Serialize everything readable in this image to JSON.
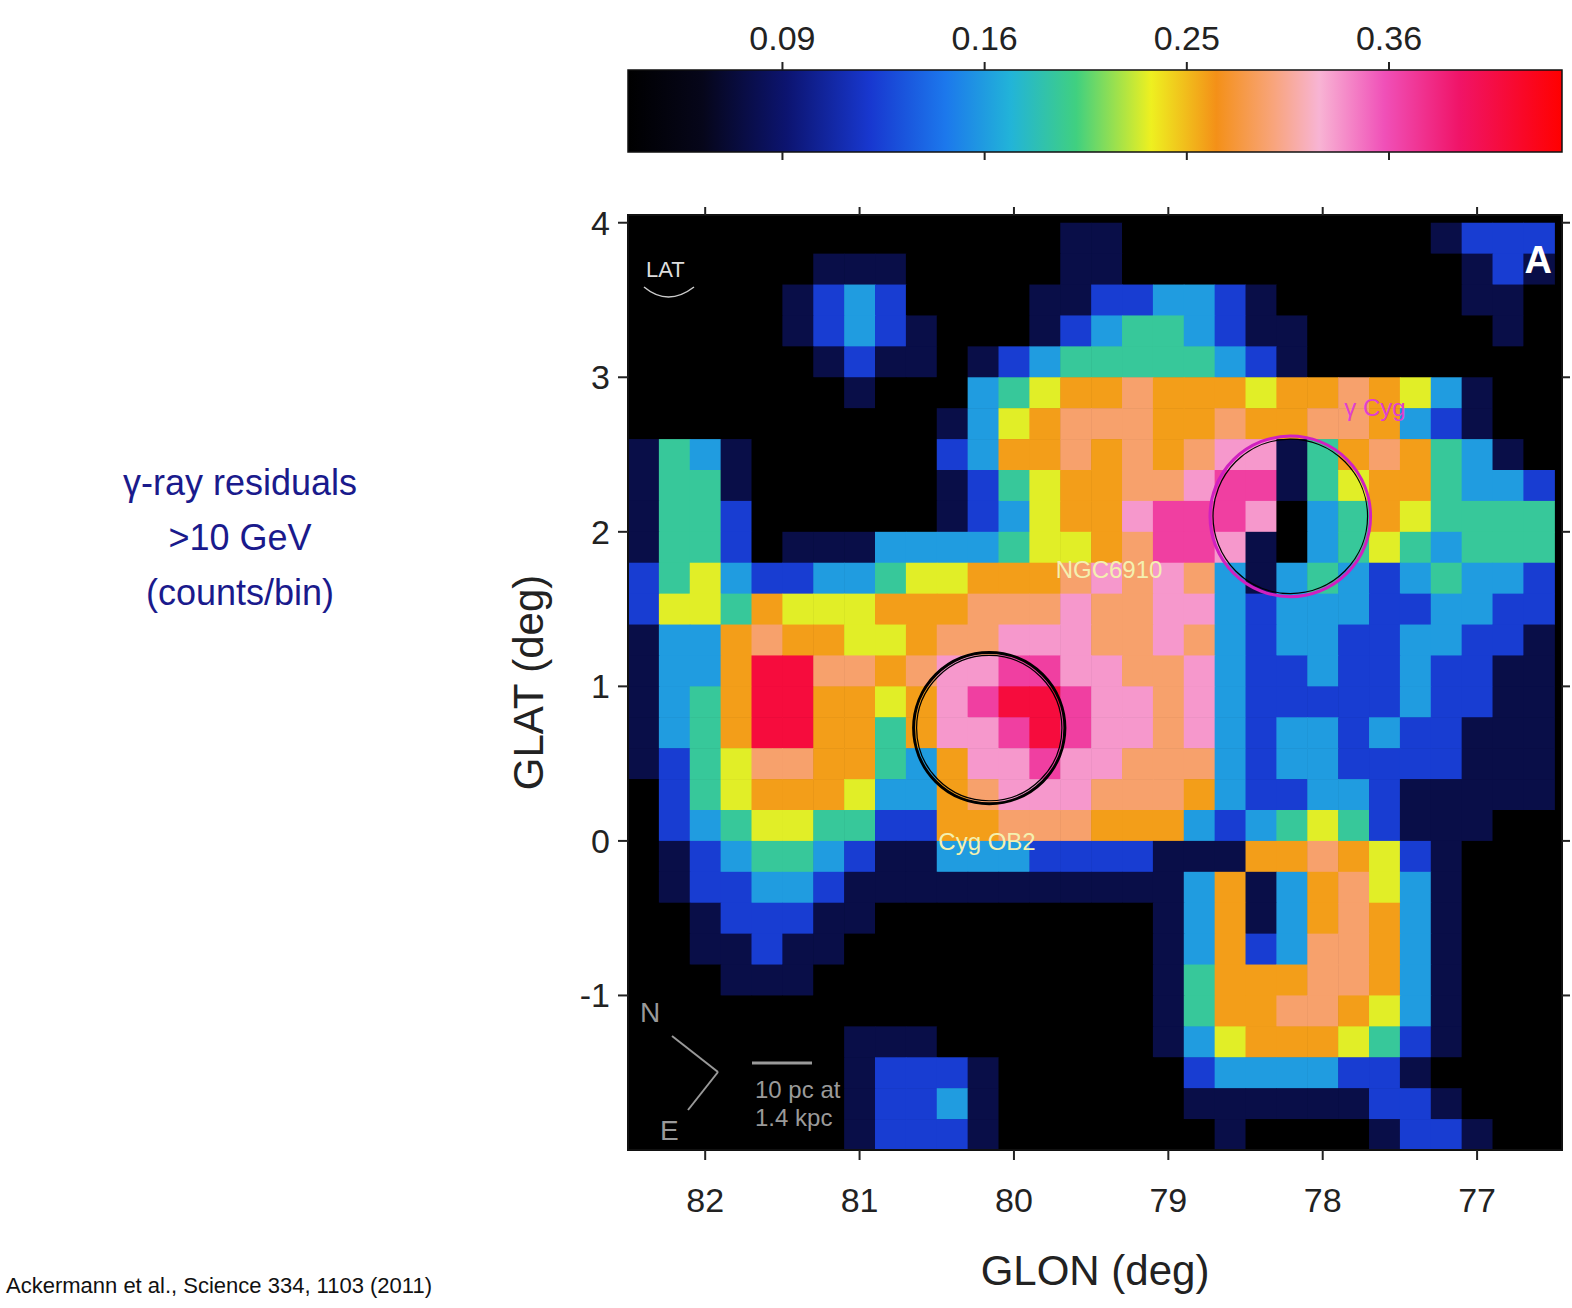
{
  "chart_data": {
    "type": "heatmap",
    "xlabel": "GLON (deg)",
    "ylabel": "GLAT (deg)",
    "xlim": [
      82.5,
      76.45
    ],
    "ylim": [
      -2.0,
      4.05
    ],
    "xticks": [
      82,
      81,
      80,
      79,
      78,
      77
    ],
    "yticks": [
      -1,
      0,
      1,
      2,
      3,
      4
    ],
    "x": [
      82.4,
      82.2,
      82.0,
      81.8,
      81.6,
      81.4,
      81.2,
      81.0,
      80.8,
      80.6,
      80.4,
      80.2,
      80.0,
      79.8,
      79.6,
      79.4,
      79.2,
      79.0,
      78.8,
      78.6,
      78.4,
      78.2,
      78.0,
      77.8,
      77.6,
      77.4,
      77.2,
      77.0,
      76.8,
      76.6
    ],
    "y": [
      3.9,
      3.7,
      3.5,
      3.3,
      3.1,
      2.9,
      2.7,
      2.5,
      2.3,
      2.1,
      1.9,
      1.7,
      1.5,
      1.3,
      1.1,
      0.9,
      0.7,
      0.5,
      0.3,
      0.1,
      -0.1,
      -0.3,
      -0.5,
      -0.7,
      -0.9,
      -1.1,
      -1.3,
      -1.5,
      -1.7,
      -1.9
    ],
    "values": [
      [
        0.05,
        0.05,
        0.05,
        0.05,
        0.05,
        0.05,
        0.05,
        0.05,
        0.05,
        0.05,
        0.05,
        0.05,
        0.05,
        0.05,
        0.08,
        0.08,
        0.05,
        0.05,
        0.05,
        0.05,
        0.05,
        0.05,
        0.05,
        0.05,
        0.05,
        0.05,
        0.08,
        0.12,
        0.12,
        0.12
      ],
      [
        0.05,
        0.05,
        0.05,
        0.05,
        0.05,
        0.05,
        0.08,
        0.08,
        0.08,
        0.05,
        0.05,
        0.05,
        0.05,
        0.05,
        0.08,
        0.08,
        0.05,
        0.05,
        0.05,
        0.05,
        0.05,
        0.05,
        0.05,
        0.05,
        0.05,
        0.05,
        0.05,
        0.08,
        0.12,
        0.08
      ],
      [
        0.05,
        0.05,
        0.05,
        0.05,
        0.05,
        0.08,
        0.12,
        0.16,
        0.12,
        0.05,
        0.05,
        0.05,
        0.05,
        0.08,
        0.08,
        0.12,
        0.12,
        0.16,
        0.16,
        0.12,
        0.08,
        0.05,
        0.05,
        0.05,
        0.05,
        0.05,
        0.05,
        0.08,
        0.08,
        0.05
      ],
      [
        0.05,
        0.05,
        0.05,
        0.05,
        0.05,
        0.08,
        0.12,
        0.16,
        0.12,
        0.08,
        0.05,
        0.05,
        0.05,
        0.08,
        0.12,
        0.16,
        0.19,
        0.19,
        0.16,
        0.12,
        0.08,
        0.08,
        0.05,
        0.05,
        0.05,
        0.05,
        0.05,
        0.05,
        0.08,
        0.05
      ],
      [
        0.05,
        0.05,
        0.05,
        0.05,
        0.05,
        0.05,
        0.08,
        0.12,
        0.08,
        0.08,
        0.05,
        0.08,
        0.12,
        0.16,
        0.19,
        0.19,
        0.19,
        0.19,
        0.19,
        0.16,
        0.12,
        0.08,
        0.05,
        0.05,
        0.05,
        0.05,
        0.05,
        0.05,
        0.05,
        0.05
      ],
      [
        0.05,
        0.05,
        0.05,
        0.05,
        0.05,
        0.05,
        0.05,
        0.08,
        0.05,
        0.05,
        0.05,
        0.16,
        0.19,
        0.23,
        0.26,
        0.26,
        0.29,
        0.26,
        0.26,
        0.26,
        0.23,
        0.26,
        0.26,
        0.29,
        0.26,
        0.23,
        0.16,
        0.08,
        0.05,
        0.05
      ],
      [
        0.05,
        0.05,
        0.05,
        0.05,
        0.05,
        0.05,
        0.05,
        0.05,
        0.05,
        0.05,
        0.08,
        0.16,
        0.23,
        0.26,
        0.29,
        0.29,
        0.29,
        0.26,
        0.26,
        0.29,
        0.26,
        0.26,
        0.29,
        0.29,
        0.26,
        0.16,
        0.12,
        0.08,
        0.05,
        0.05
      ],
      [
        0.08,
        0.19,
        0.16,
        0.08,
        0.05,
        0.05,
        0.05,
        0.05,
        0.05,
        0.05,
        0.12,
        0.16,
        0.26,
        0.26,
        0.29,
        0.26,
        0.29,
        0.26,
        0.29,
        0.33,
        0.33,
        0.08,
        0.19,
        0.26,
        0.29,
        0.26,
        0.19,
        0.16,
        0.08,
        0.05
      ],
      [
        0.08,
        0.19,
        0.19,
        0.08,
        0.05,
        0.05,
        0.05,
        0.05,
        0.05,
        0.05,
        0.08,
        0.12,
        0.19,
        0.23,
        0.26,
        0.26,
        0.29,
        0.29,
        0.33,
        0.37,
        0.37,
        0.08,
        0.19,
        0.23,
        0.26,
        0.26,
        0.19,
        0.16,
        0.16,
        0.12
      ],
      [
        0.08,
        0.19,
        0.19,
        0.12,
        0.05,
        0.05,
        0.05,
        0.05,
        0.05,
        0.05,
        0.08,
        0.12,
        0.16,
        0.23,
        0.26,
        0.26,
        0.33,
        0.37,
        0.37,
        0.37,
        0.33,
        0.05,
        0.16,
        0.19,
        0.26,
        0.23,
        0.19,
        0.19,
        0.19,
        0.19
      ],
      [
        0.08,
        0.19,
        0.19,
        0.12,
        0.05,
        0.08,
        0.08,
        0.08,
        0.16,
        0.16,
        0.16,
        0.16,
        0.19,
        0.23,
        0.23,
        0.26,
        0.29,
        0.37,
        0.37,
        0.33,
        0.08,
        0.05,
        0.16,
        0.19,
        0.23,
        0.19,
        0.16,
        0.19,
        0.19,
        0.19
      ],
      [
        0.12,
        0.19,
        0.23,
        0.16,
        0.12,
        0.12,
        0.16,
        0.16,
        0.19,
        0.23,
        0.23,
        0.26,
        0.26,
        0.26,
        0.29,
        0.33,
        0.29,
        0.33,
        0.29,
        0.16,
        0.08,
        0.16,
        0.19,
        0.16,
        0.12,
        0.16,
        0.19,
        0.16,
        0.16,
        0.12
      ],
      [
        0.12,
        0.23,
        0.23,
        0.19,
        0.26,
        0.23,
        0.23,
        0.23,
        0.26,
        0.26,
        0.26,
        0.29,
        0.29,
        0.29,
        0.33,
        0.29,
        0.29,
        0.33,
        0.33,
        0.16,
        0.12,
        0.16,
        0.16,
        0.16,
        0.12,
        0.12,
        0.16,
        0.16,
        0.12,
        0.12
      ],
      [
        0.08,
        0.16,
        0.16,
        0.26,
        0.29,
        0.26,
        0.26,
        0.23,
        0.23,
        0.26,
        0.29,
        0.29,
        0.33,
        0.33,
        0.33,
        0.29,
        0.29,
        0.33,
        0.29,
        0.16,
        0.12,
        0.16,
        0.16,
        0.12,
        0.12,
        0.16,
        0.16,
        0.12,
        0.12,
        0.08
      ],
      [
        0.08,
        0.16,
        0.16,
        0.26,
        0.43,
        0.43,
        0.29,
        0.29,
        0.26,
        0.29,
        0.33,
        0.33,
        0.37,
        0.37,
        0.33,
        0.33,
        0.29,
        0.29,
        0.33,
        0.16,
        0.12,
        0.12,
        0.16,
        0.12,
        0.12,
        0.16,
        0.12,
        0.12,
        0.08,
        0.08
      ],
      [
        0.08,
        0.16,
        0.19,
        0.26,
        0.43,
        0.43,
        0.26,
        0.26,
        0.23,
        0.26,
        0.33,
        0.37,
        0.43,
        0.43,
        0.37,
        0.33,
        0.33,
        0.29,
        0.33,
        0.16,
        0.12,
        0.12,
        0.12,
        0.12,
        0.12,
        0.16,
        0.12,
        0.12,
        0.08,
        0.08
      ],
      [
        0.08,
        0.16,
        0.19,
        0.26,
        0.43,
        0.43,
        0.26,
        0.26,
        0.19,
        0.26,
        0.33,
        0.33,
        0.37,
        0.43,
        0.37,
        0.33,
        0.33,
        0.29,
        0.33,
        0.16,
        0.12,
        0.16,
        0.16,
        0.12,
        0.16,
        0.12,
        0.12,
        0.08,
        0.08,
        0.08
      ],
      [
        0.08,
        0.12,
        0.19,
        0.23,
        0.29,
        0.29,
        0.26,
        0.26,
        0.19,
        0.16,
        0.26,
        0.33,
        0.33,
        0.37,
        0.33,
        0.33,
        0.29,
        0.29,
        0.29,
        0.16,
        0.12,
        0.16,
        0.16,
        0.12,
        0.12,
        0.12,
        0.12,
        0.08,
        0.08,
        0.08
      ],
      [
        0.05,
        0.12,
        0.19,
        0.23,
        0.26,
        0.26,
        0.26,
        0.23,
        0.16,
        0.16,
        0.26,
        0.29,
        0.33,
        0.33,
        0.33,
        0.29,
        0.29,
        0.29,
        0.26,
        0.16,
        0.12,
        0.12,
        0.16,
        0.16,
        0.12,
        0.08,
        0.08,
        0.08,
        0.08,
        0.08
      ],
      [
        0.05,
        0.12,
        0.16,
        0.19,
        0.23,
        0.23,
        0.19,
        0.19,
        0.12,
        0.12,
        0.26,
        0.26,
        0.29,
        0.29,
        0.29,
        0.26,
        0.26,
        0.26,
        0.16,
        0.12,
        0.16,
        0.19,
        0.23,
        0.19,
        0.12,
        0.08,
        0.08,
        0.08,
        0.05,
        0.05
      ],
      [
        0.05,
        0.08,
        0.12,
        0.16,
        0.19,
        0.19,
        0.16,
        0.12,
        0.08,
        0.08,
        0.16,
        0.16,
        0.16,
        0.12,
        0.12,
        0.12,
        0.12,
        0.08,
        0.08,
        0.08,
        0.26,
        0.26,
        0.29,
        0.26,
        0.23,
        0.12,
        0.08,
        0.05,
        0.05,
        0.05
      ],
      [
        0.05,
        0.08,
        0.12,
        0.12,
        0.16,
        0.16,
        0.12,
        0.08,
        0.08,
        0.08,
        0.08,
        0.08,
        0.08,
        0.08,
        0.08,
        0.08,
        0.08,
        0.08,
        0.16,
        0.26,
        0.08,
        0.16,
        0.26,
        0.29,
        0.23,
        0.16,
        0.08,
        0.05,
        0.05,
        0.05
      ],
      [
        0.05,
        0.05,
        0.08,
        0.12,
        0.12,
        0.12,
        0.08,
        0.08,
        0.05,
        0.05,
        0.05,
        0.05,
        0.05,
        0.05,
        0.05,
        0.05,
        0.05,
        0.08,
        0.16,
        0.26,
        0.08,
        0.16,
        0.26,
        0.29,
        0.26,
        0.16,
        0.08,
        0.05,
        0.05,
        0.05
      ],
      [
        0.05,
        0.05,
        0.08,
        0.08,
        0.12,
        0.08,
        0.08,
        0.05,
        0.05,
        0.05,
        0.05,
        0.05,
        0.05,
        0.05,
        0.05,
        0.05,
        0.05,
        0.08,
        0.16,
        0.26,
        0.12,
        0.16,
        0.29,
        0.29,
        0.26,
        0.16,
        0.08,
        0.05,
        0.05,
        0.05
      ],
      [
        0.05,
        0.05,
        0.05,
        0.08,
        0.08,
        0.08,
        0.05,
        0.05,
        0.05,
        0.05,
        0.05,
        0.05,
        0.05,
        0.05,
        0.05,
        0.05,
        0.05,
        0.08,
        0.19,
        0.26,
        0.26,
        0.26,
        0.29,
        0.29,
        0.26,
        0.16,
        0.08,
        0.05,
        0.05,
        0.05
      ],
      [
        0.05,
        0.05,
        0.05,
        0.05,
        0.05,
        0.05,
        0.05,
        0.05,
        0.05,
        0.05,
        0.05,
        0.05,
        0.05,
        0.05,
        0.05,
        0.05,
        0.05,
        0.08,
        0.19,
        0.26,
        0.26,
        0.29,
        0.29,
        0.26,
        0.23,
        0.16,
        0.08,
        0.05,
        0.05,
        0.05
      ],
      [
        0.05,
        0.05,
        0.05,
        0.05,
        0.05,
        0.05,
        0.05,
        0.08,
        0.08,
        0.08,
        0.05,
        0.05,
        0.05,
        0.05,
        0.05,
        0.05,
        0.05,
        0.08,
        0.16,
        0.23,
        0.26,
        0.26,
        0.26,
        0.23,
        0.19,
        0.12,
        0.08,
        0.05,
        0.05,
        0.05
      ],
      [
        0.05,
        0.05,
        0.05,
        0.05,
        0.05,
        0.05,
        0.05,
        0.08,
        0.12,
        0.12,
        0.12,
        0.08,
        0.05,
        0.05,
        0.05,
        0.05,
        0.05,
        0.05,
        0.12,
        0.16,
        0.16,
        0.16,
        0.16,
        0.12,
        0.12,
        0.08,
        0.05,
        0.05,
        0.05,
        0.05
      ],
      [
        0.05,
        0.05,
        0.05,
        0.05,
        0.05,
        0.05,
        0.05,
        0.08,
        0.12,
        0.12,
        0.16,
        0.08,
        0.05,
        0.05,
        0.05,
        0.05,
        0.05,
        0.05,
        0.08,
        0.08,
        0.08,
        0.08,
        0.08,
        0.08,
        0.12,
        0.12,
        0.08,
        0.05,
        0.05,
        0.05
      ],
      [
        0.05,
        0.05,
        0.05,
        0.05,
        0.05,
        0.05,
        0.05,
        0.08,
        0.12,
        0.12,
        0.12,
        0.08,
        0.05,
        0.05,
        0.05,
        0.05,
        0.05,
        0.05,
        0.05,
        0.08,
        0.05,
        0.05,
        0.05,
        0.05,
        0.08,
        0.12,
        0.12,
        0.08,
        0.05,
        0.05
      ]
    ],
    "colorbar": {
      "label": [
        "γ-ray residuals",
        ">10 GeV",
        "(counts/bin)"
      ],
      "range": [
        0.05,
        0.47
      ],
      "ticks": [
        0.09,
        0.16,
        0.25,
        0.36
      ]
    },
    "annotations": [
      {
        "text": "NGC6910",
        "glon": 79.73,
        "glat": 1.7,
        "color": "#f4f0b0"
      },
      {
        "text": "Cyg OB2",
        "glon": 80.49,
        "glat": -0.06,
        "color": "#f4f0b0"
      },
      {
        "text": "γ Cyg",
        "glon": 77.86,
        "glat": 2.75,
        "color": "#e040d0"
      }
    ],
    "circles": [
      {
        "glon": 80.16,
        "glat": 0.73,
        "r": 0.49,
        "color": "#000000"
      },
      {
        "glon": 78.21,
        "glat": 2.1,
        "r": 0.52,
        "color": "#d020c0"
      }
    ],
    "panel_label": "A",
    "instrument_label": "LAT",
    "compass": [
      "N",
      "E"
    ],
    "scale_bar": [
      "10 pc at",
      "1.4 kpc"
    ],
    "source": "Ackermann et al., Science 334, 1103 (2011)"
  }
}
